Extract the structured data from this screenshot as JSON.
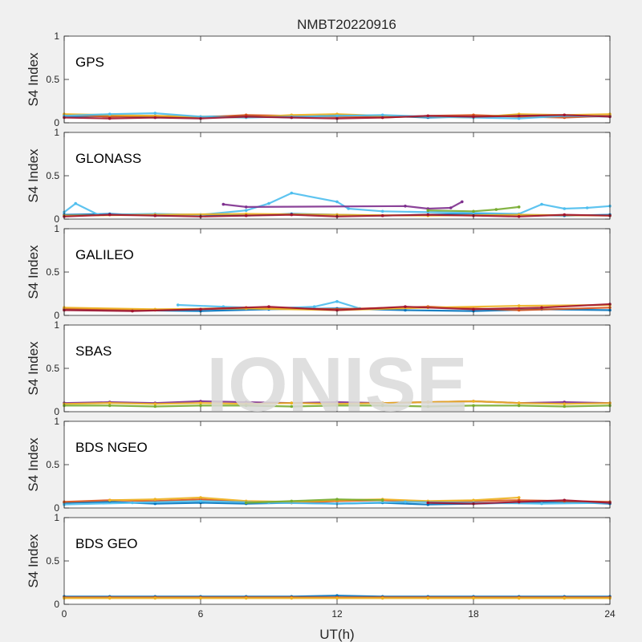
{
  "title": "NMBT20220916",
  "watermark": "IONISE",
  "colors": {
    "background": "#f0f0f0",
    "axes_bg": "#ffffff",
    "axis_line": "#262626",
    "series": [
      "#0072BD",
      "#D95319",
      "#EDB120",
      "#7E2F8E",
      "#77AC30",
      "#4DBEEE",
      "#A2142F"
    ]
  },
  "chart_data": [
    {
      "type": "scatter",
      "panel_label": "GPS",
      "ylabel": "S4 Index",
      "xlim": [
        0,
        24
      ],
      "ylim": [
        0,
        1
      ],
      "yticks": [
        0,
        0.5,
        1
      ],
      "ytick_labels": [
        "0",
        "0.5",
        "1"
      ],
      "xticks": [
        0,
        6,
        12,
        18,
        24
      ],
      "xtick_labels": [],
      "grid": false,
      "series": [
        {
          "color": "#0072BD",
          "x": [
            0,
            2,
            4,
            6,
            8,
            10,
            12,
            14,
            16,
            18,
            20,
            22,
            24
          ],
          "y": [
            0.07,
            0.08,
            0.06,
            0.07,
            0.08,
            0.06,
            0.09,
            0.08,
            0.06,
            0.07,
            0.09,
            0.07,
            0.08
          ]
        },
        {
          "color": "#D95319",
          "x": [
            0,
            2,
            4,
            6,
            8,
            10,
            12,
            14,
            16,
            18,
            20,
            22,
            24
          ],
          "y": [
            0.09,
            0.07,
            0.08,
            0.06,
            0.09,
            0.08,
            0.07,
            0.06,
            0.08,
            0.09,
            0.07,
            0.06,
            0.08
          ]
        },
        {
          "color": "#EDB120",
          "x": [
            0,
            2,
            4,
            6,
            8,
            10,
            12,
            14,
            16,
            18,
            20,
            22,
            24
          ],
          "y": [
            0.1,
            0.09,
            0.08,
            0.07,
            0.06,
            0.09,
            0.1,
            0.08,
            0.07,
            0.06,
            0.1,
            0.09,
            0.1
          ]
        },
        {
          "color": "#4DBEEE",
          "x": [
            0,
            2,
            4,
            6,
            8,
            10,
            12,
            14,
            16,
            18,
            20,
            22,
            24
          ],
          "y": [
            0.08,
            0.1,
            0.11,
            0.07,
            0.06,
            0.07,
            0.08,
            0.09,
            0.07,
            0.06,
            0.05,
            0.08,
            0.07
          ]
        },
        {
          "color": "#A2142F",
          "x": [
            0,
            2,
            4,
            6,
            8,
            10,
            12,
            14,
            16,
            18,
            20,
            22,
            24
          ],
          "y": [
            0.06,
            0.05,
            0.06,
            0.05,
            0.07,
            0.06,
            0.05,
            0.06,
            0.08,
            0.07,
            0.08,
            0.09,
            0.07
          ]
        }
      ]
    },
    {
      "type": "scatter",
      "panel_label": "GLONASS",
      "ylabel": "S4 Index",
      "xlim": [
        0,
        24
      ],
      "ylim": [
        0,
        1
      ],
      "yticks": [
        0,
        0.5,
        1
      ],
      "ytick_labels": [
        "0",
        "0.5",
        "1"
      ],
      "xticks": [
        0,
        6,
        12,
        18,
        24
      ],
      "xtick_labels": [],
      "grid": false,
      "series": [
        {
          "color": "#0072BD",
          "x": [
            0,
            2,
            4,
            6,
            8,
            10,
            12,
            14,
            16,
            18,
            20,
            22,
            24
          ],
          "y": [
            0.05,
            0.06,
            0.04,
            0.05,
            0.04,
            0.06,
            0.05,
            0.04,
            0.05,
            0.06,
            0.05,
            0.04,
            0.05
          ]
        },
        {
          "color": "#4DBEEE",
          "x": [
            0,
            0.5,
            1.5,
            4,
            6,
            8,
            9,
            10,
            12,
            12.5,
            14,
            16,
            18,
            20,
            21,
            22,
            23,
            24
          ],
          "y": [
            0.08,
            0.18,
            0.05,
            0.06,
            0.05,
            0.1,
            0.18,
            0.3,
            0.2,
            0.12,
            0.09,
            0.08,
            0.07,
            0.06,
            0.17,
            0.12,
            0.13,
            0.15
          ]
        },
        {
          "color": "#7E2F8E",
          "x": [
            7,
            8,
            15,
            16,
            17,
            17.5
          ],
          "y": [
            0.17,
            0.14,
            0.15,
            0.12,
            0.13,
            0.2
          ]
        },
        {
          "color": "#77AC30",
          "x": [
            16,
            18,
            19,
            20
          ],
          "y": [
            0.1,
            0.09,
            0.11,
            0.14
          ]
        },
        {
          "color": "#EDB120",
          "x": [
            0,
            4,
            8,
            12,
            16,
            20,
            24
          ],
          "y": [
            0.04,
            0.05,
            0.06,
            0.05,
            0.04,
            0.05,
            0.04
          ]
        },
        {
          "color": "#A2142F",
          "x": [
            0,
            2,
            4,
            6,
            8,
            10,
            12,
            14,
            16,
            18,
            20,
            22,
            24
          ],
          "y": [
            0.03,
            0.05,
            0.04,
            0.03,
            0.04,
            0.05,
            0.03,
            0.04,
            0.05,
            0.04,
            0.03,
            0.05,
            0.04
          ]
        }
      ]
    },
    {
      "type": "scatter",
      "panel_label": "GALILEO",
      "ylabel": "S4 Index",
      "xlim": [
        0,
        24
      ],
      "ylim": [
        0,
        1
      ],
      "yticks": [
        0,
        0.5,
        1
      ],
      "ytick_labels": [
        "0",
        "0.5",
        "1"
      ],
      "xticks": [
        0,
        6,
        12,
        18,
        24
      ],
      "xtick_labels": [],
      "grid": false,
      "series": [
        {
          "color": "#0072BD",
          "x": [
            0,
            3,
            6,
            9,
            12,
            15,
            18,
            21,
            24
          ],
          "y": [
            0.07,
            0.06,
            0.05,
            0.07,
            0.08,
            0.06,
            0.05,
            0.07,
            0.06
          ]
        },
        {
          "color": "#4DBEEE",
          "x": [
            5,
            7,
            9,
            11,
            12,
            13
          ],
          "y": [
            0.12,
            0.1,
            0.08,
            0.1,
            0.16,
            0.08
          ]
        },
        {
          "color": "#D95319",
          "x": [
            0,
            4,
            8,
            12,
            16,
            20,
            24
          ],
          "y": [
            0.08,
            0.06,
            0.09,
            0.07,
            0.1,
            0.06,
            0.09
          ]
        },
        {
          "color": "#EDB120",
          "x": [
            0,
            4,
            8,
            12,
            16,
            20,
            24
          ],
          "y": [
            0.09,
            0.07,
            0.08,
            0.06,
            0.09,
            0.11,
            0.12
          ]
        },
        {
          "color": "#A2142F",
          "x": [
            0,
            3,
            6,
            9,
            12,
            15,
            18,
            21,
            24
          ],
          "y": [
            0.06,
            0.05,
            0.07,
            0.1,
            0.06,
            0.1,
            0.07,
            0.09,
            0.13
          ]
        }
      ]
    },
    {
      "type": "scatter",
      "panel_label": "SBAS",
      "ylabel": "S4 Index",
      "xlim": [
        0,
        24
      ],
      "ylim": [
        0,
        1
      ],
      "yticks": [
        0,
        0.5,
        1
      ],
      "ytick_labels": [
        "0",
        "0.5",
        "1"
      ],
      "xticks": [
        0,
        6,
        12,
        18,
        24
      ],
      "xtick_labels": [],
      "grid": false,
      "series": [
        {
          "color": "#7E2F8E",
          "x": [
            0,
            2,
            4,
            6,
            8,
            10,
            12,
            14,
            16,
            18,
            20,
            22,
            24
          ],
          "y": [
            0.1,
            0.11,
            0.1,
            0.12,
            0.11,
            0.1,
            0.11,
            0.1,
            0.11,
            0.12,
            0.1,
            0.11,
            0.1
          ]
        },
        {
          "color": "#EDB120",
          "x": [
            0,
            2,
            4,
            6,
            8,
            10,
            12,
            14,
            16,
            18,
            20,
            22,
            24
          ],
          "y": [
            0.09,
            0.1,
            0.09,
            0.1,
            0.09,
            0.1,
            0.09,
            0.1,
            0.11,
            0.12,
            0.1,
            0.09,
            0.1
          ]
        },
        {
          "color": "#77AC30",
          "x": [
            0,
            2,
            4,
            6,
            8,
            10,
            12,
            14,
            16,
            18,
            20,
            22,
            24
          ],
          "y": [
            0.07,
            0.07,
            0.06,
            0.07,
            0.07,
            0.06,
            0.07,
            0.07,
            0.06,
            0.07,
            0.07,
            0.06,
            0.07
          ]
        }
      ]
    },
    {
      "type": "scatter",
      "panel_label": "BDS NGEO",
      "ylabel": "S4 Index",
      "xlim": [
        0,
        24
      ],
      "ylim": [
        0,
        1
      ],
      "yticks": [
        0,
        0.5,
        1
      ],
      "ytick_labels": [
        "0",
        "0.5",
        "1"
      ],
      "xticks": [
        0,
        6,
        12,
        18,
        24
      ],
      "xtick_labels": [],
      "grid": false,
      "series": [
        {
          "color": "#0072BD",
          "x": [
            0,
            2,
            4,
            6,
            8,
            10,
            12,
            14,
            16,
            18,
            20,
            22,
            24
          ],
          "y": [
            0.06,
            0.07,
            0.05,
            0.06,
            0.05,
            0.06,
            0.05,
            0.06,
            0.04,
            0.05,
            0.06,
            0.07,
            0.05
          ]
        },
        {
          "color": "#D95319",
          "x": [
            0,
            2,
            4,
            6,
            8,
            10,
            12,
            14,
            16,
            18,
            20,
            22,
            24
          ],
          "y": [
            0.07,
            0.09,
            0.08,
            0.1,
            0.07,
            0.06,
            0.08,
            0.09,
            0.07,
            0.08,
            0.09,
            0.08,
            0.07
          ]
        },
        {
          "color": "#EDB120",
          "x": [
            2,
            4,
            6,
            8,
            10,
            12,
            14,
            16,
            18,
            20
          ],
          "y": [
            0.09,
            0.1,
            0.12,
            0.08,
            0.07,
            0.09,
            0.1,
            0.08,
            0.09,
            0.12
          ]
        },
        {
          "color": "#4DBEEE",
          "x": [
            0,
            3,
            6,
            9,
            12,
            15,
            18,
            21,
            24
          ],
          "y": [
            0.04,
            0.06,
            0.08,
            0.06,
            0.05,
            0.07,
            0.06,
            0.05,
            0.06
          ]
        },
        {
          "color": "#77AC30",
          "x": [
            8,
            10,
            12,
            14
          ],
          "y": [
            0.06,
            0.08,
            0.1,
            0.09
          ]
        },
        {
          "color": "#A2142F",
          "x": [
            16,
            18,
            20,
            22,
            24
          ],
          "y": [
            0.06,
            0.05,
            0.07,
            0.09,
            0.06
          ]
        }
      ]
    },
    {
      "type": "scatter",
      "panel_label": "BDS GEO",
      "ylabel": "S4 Index",
      "xlabel": "UT(h)",
      "xlim": [
        0,
        24
      ],
      "ylim": [
        0,
        1
      ],
      "yticks": [
        0,
        0.5,
        1
      ],
      "ytick_labels": [
        "0",
        "0.5",
        "1"
      ],
      "xticks": [
        0,
        6,
        12,
        18,
        24
      ],
      "xtick_labels": [
        "0",
        "6",
        "12",
        "18",
        "24"
      ],
      "grid": false,
      "series": [
        {
          "color": "#0072BD",
          "x": [
            0,
            2,
            4,
            6,
            8,
            10,
            12,
            14,
            16,
            18,
            20,
            22,
            24
          ],
          "y": [
            0.09,
            0.09,
            0.09,
            0.09,
            0.09,
            0.09,
            0.1,
            0.09,
            0.09,
            0.09,
            0.09,
            0.09,
            0.09
          ]
        },
        {
          "color": "#D95319",
          "x": [
            0,
            2,
            4,
            6,
            8,
            10,
            12,
            14,
            16,
            18,
            20,
            22,
            24
          ],
          "y": [
            0.08,
            0.08,
            0.08,
            0.08,
            0.08,
            0.08,
            0.08,
            0.08,
            0.08,
            0.08,
            0.08,
            0.08,
            0.08
          ]
        },
        {
          "color": "#EDB120",
          "x": [
            0,
            2,
            4,
            6,
            8,
            10,
            12,
            14,
            16,
            18,
            20,
            22,
            24
          ],
          "y": [
            0.07,
            0.07,
            0.07,
            0.07,
            0.07,
            0.07,
            0.07,
            0.07,
            0.07,
            0.07,
            0.07,
            0.07,
            0.07
          ]
        }
      ]
    }
  ]
}
